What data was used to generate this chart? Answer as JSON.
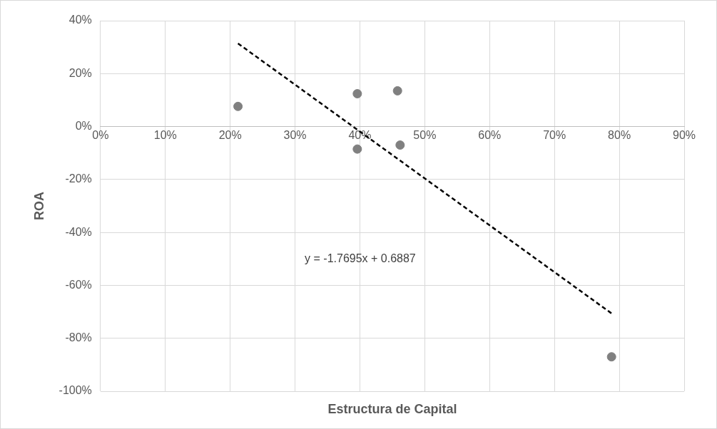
{
  "chart_data": {
    "type": "scatter",
    "xlabel": "Estructura de Capital",
    "ylabel": "ROA",
    "series": [
      {
        "color": "#808080",
        "x": [
          21.2,
          39.6,
          39.6,
          45.8,
          46.2,
          78.8
        ],
        "values": [
          7.6,
          12.4,
          -8.5,
          13.5,
          -7.0,
          -87.0
        ],
        "marker": "circle"
      },
      {
        "type": "line",
        "color": "#000000",
        "x": [
          21.2,
          78.8
        ],
        "values": [
          31.4,
          -70.6
        ],
        "marker": "none",
        "line_style": "dashed"
      }
    ],
    "xlim": [
      0,
      90
    ],
    "xticks": [
      {
        "value": 0,
        "label": "0%"
      },
      {
        "value": 10,
        "label": "10%"
      },
      {
        "value": 20,
        "label": "20%"
      },
      {
        "value": 30,
        "label": "30%"
      },
      {
        "value": 40,
        "label": "40%"
      },
      {
        "value": 50,
        "label": "50%"
      },
      {
        "value": 60,
        "label": "60%"
      },
      {
        "value": 70,
        "label": "70%"
      },
      {
        "value": 80,
        "label": "80%"
      },
      {
        "value": 90,
        "label": "90%"
      }
    ],
    "ylim": [
      -100,
      40
    ],
    "yticks": [
      {
        "value": -100,
        "label": "-100%"
      },
      {
        "value": -80,
        "label": "-80%"
      },
      {
        "value": -60,
        "label": "-60%"
      },
      {
        "value": -40,
        "label": "-40%"
      },
      {
        "value": -20,
        "label": "-20%"
      },
      {
        "value": 0,
        "label": "0%"
      },
      {
        "value": 20,
        "label": "20%"
      },
      {
        "value": 40,
        "label": "40%"
      }
    ],
    "annotations": [
      "y = -1.7695x + 0.6887"
    ],
    "grid": true,
    "legend": false
  }
}
